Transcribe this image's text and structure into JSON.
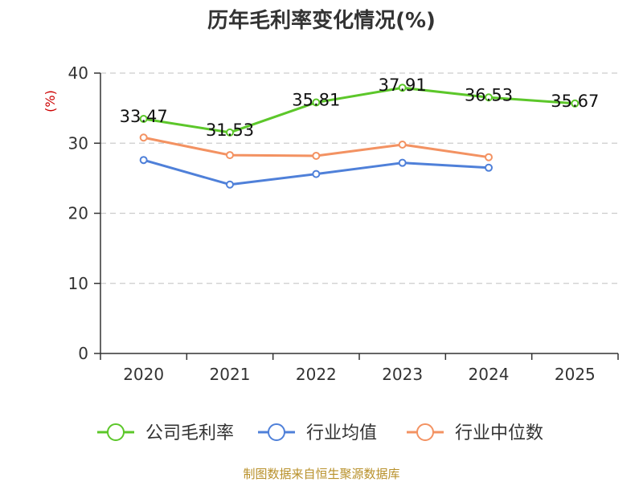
{
  "chart_data": {
    "type": "line",
    "title": "历年毛利率变化情况(%)",
    "ylabel": "(%)",
    "categories": [
      "2020",
      "2021",
      "2022",
      "2023",
      "2024",
      "2025"
    ],
    "ylim": [
      0,
      40
    ],
    "yticks": [
      0,
      10,
      20,
      30,
      40
    ],
    "grid": true,
    "legend": "bottom",
    "series": [
      {
        "name": "公司毛利率",
        "color": "#5cc72a",
        "values": [
          33.47,
          31.53,
          35.81,
          37.91,
          36.53,
          35.67
        ],
        "labels": [
          "33.47",
          "31.53",
          "35.81",
          "37.91",
          "36.53",
          "35.67"
        ]
      },
      {
        "name": "行业均值",
        "color": "#4f80d9",
        "values": [
          27.6,
          24.1,
          25.6,
          27.2,
          26.5,
          null
        ]
      },
      {
        "name": "行业中位数",
        "color": "#f39262",
        "values": [
          30.8,
          28.3,
          28.2,
          29.8,
          28.0,
          null
        ]
      }
    ]
  },
  "source": "制图数据来自恒生聚源数据库",
  "colors": {
    "unit": "#cc0000",
    "source": "#b8902a",
    "grid": "#cccccc",
    "axis": "#333333"
  }
}
